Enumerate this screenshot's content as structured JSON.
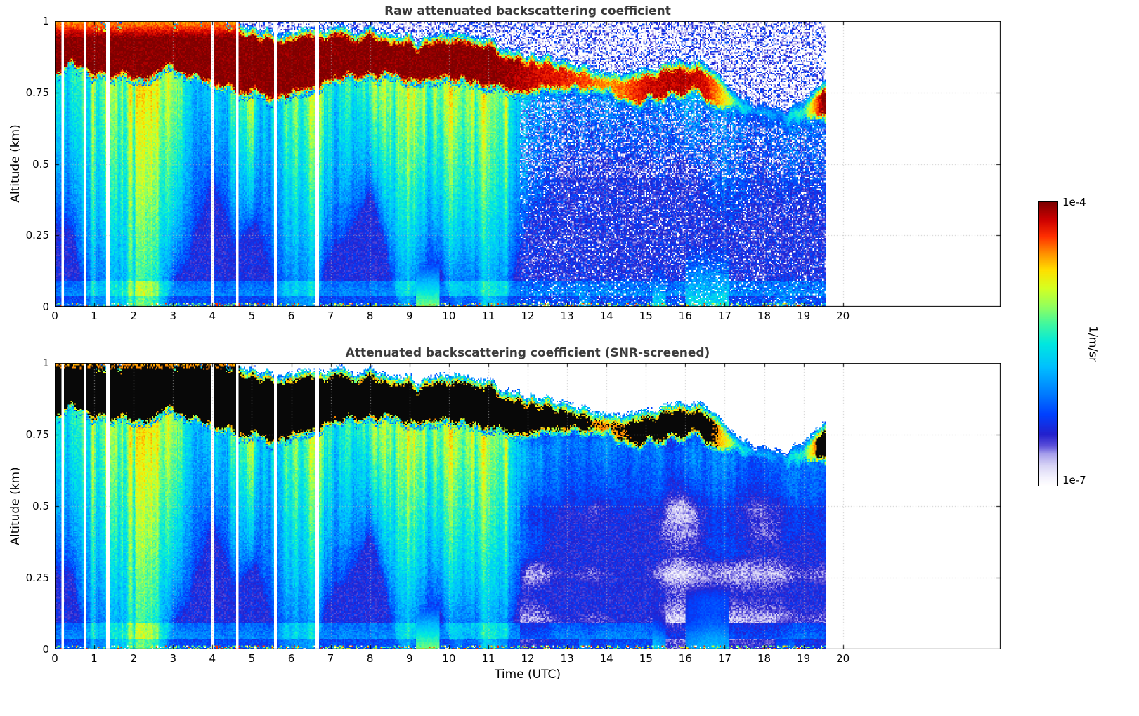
{
  "chart_data": {
    "type": "heatmap",
    "panels": [
      {
        "title": "Raw attenuated backscattering coefficient",
        "screened": false
      },
      {
        "title": "Attenuated backscattering coefficient (SNR-screened)",
        "screened": true
      }
    ],
    "x": {
      "label": "Time (UTC)",
      "lim": [
        0,
        24
      ],
      "ticks": [
        0,
        1,
        2,
        3,
        4,
        5,
        6,
        7,
        8,
        9,
        10,
        11,
        12,
        13,
        14,
        15,
        16,
        17,
        18,
        19,
        20
      ],
      "data_end": 19.58
    },
    "y": {
      "label": "Altitude (km)",
      "lim": [
        0,
        1
      ],
      "ticks": [
        0,
        0.25,
        0.5,
        0.75,
        1
      ]
    },
    "z": {
      "label": "1/m/sr",
      "scale": "log10",
      "vmin": -7,
      "vmax": -4,
      "vmin_label": "1e-7",
      "vmax_label": "1e-4"
    },
    "colormap": [
      [
        0.0,
        "#ffffff"
      ],
      [
        0.03,
        "#f3f1fd"
      ],
      [
        0.07,
        "#d9d5f6"
      ],
      [
        0.11,
        "#a9a1ec"
      ],
      [
        0.14,
        "#5b50da"
      ],
      [
        0.18,
        "#2421cd"
      ],
      [
        0.25,
        "#0041fe"
      ],
      [
        0.33,
        "#0080ff"
      ],
      [
        0.42,
        "#00c1ff"
      ],
      [
        0.5,
        "#00e8e0"
      ],
      [
        0.57,
        "#41f8a0"
      ],
      [
        0.63,
        "#90ff60"
      ],
      [
        0.7,
        "#d8ff20"
      ],
      [
        0.76,
        "#ffe000"
      ],
      [
        0.82,
        "#ff9000"
      ],
      [
        0.88,
        "#ff3000"
      ],
      [
        0.94,
        "#cc0000"
      ],
      [
        1.0,
        "#7f0000"
      ]
    ],
    "over_color_screened": "#000000",
    "missing_data_gaps_utc": [
      0.2,
      0.78,
      1.35,
      4.0,
      4.62,
      5.6,
      6.65
    ],
    "cloud": {
      "t": [
        0,
        0.5,
        1,
        1.5,
        2,
        2.5,
        3,
        3.5,
        4,
        4.5,
        5,
        5.5,
        6,
        6.5,
        7,
        7.5,
        8,
        8.5,
        9,
        9.5,
        10,
        10.5,
        11,
        11.5,
        12,
        12.5,
        13,
        13.5,
        14,
        14.5,
        15,
        15.5,
        16,
        16.5,
        17,
        17.5,
        18,
        18.5,
        19,
        19.5
      ],
      "base_km": [
        0.8,
        0.82,
        0.8,
        0.78,
        0.78,
        0.8,
        0.82,
        0.8,
        0.77,
        0.75,
        0.73,
        0.71,
        0.73,
        0.75,
        0.78,
        0.79,
        0.8,
        0.79,
        0.78,
        0.77,
        0.78,
        0.77,
        0.76,
        0.73,
        0.73,
        0.75,
        0.75,
        0.75,
        0.73,
        0.71,
        0.71,
        0.72,
        0.73,
        0.71,
        0.69,
        0.67,
        0.66,
        0.65,
        0.64,
        0.64
      ],
      "top_km": [
        1.01,
        1.01,
        1.01,
        1.01,
        1.01,
        1.01,
        1.01,
        1.01,
        1.0,
        0.99,
        0.97,
        0.95,
        0.96,
        0.97,
        0.97,
        0.96,
        0.96,
        0.95,
        0.95,
        0.94,
        0.95,
        0.94,
        0.93,
        0.9,
        0.88,
        0.87,
        0.86,
        0.84,
        0.82,
        0.81,
        0.83,
        0.85,
        0.86,
        0.84,
        0.79,
        0.72,
        0.7,
        0.69,
        0.7,
        0.78
      ],
      "intensity": [
        1,
        1,
        1,
        1,
        1,
        1,
        1,
        1,
        1,
        1,
        1,
        1,
        1,
        1,
        1,
        1,
        1,
        1,
        1,
        1,
        1,
        1,
        1,
        0.98,
        0.95,
        0.92,
        0.9,
        0.87,
        0.82,
        0.85,
        0.93,
        0.95,
        0.95,
        0.93,
        0.75,
        0.5,
        0.42,
        0.45,
        0.55,
        1.0
      ]
    },
    "virga": {
      "strength": [
        0.55,
        0.5,
        0.75,
        0.8,
        0.85,
        0.9,
        0.65,
        0.38,
        0.32,
        0.55,
        0.6,
        0.5,
        0.6,
        0.65,
        0.5,
        0.45,
        0.55,
        0.6,
        0.65,
        0.7,
        0.75,
        0.7,
        0.75,
        0.5,
        0.3,
        0.26,
        0.22,
        0.2,
        0.2,
        0.18,
        0.2,
        0.22,
        0.25,
        0.25,
        0.2,
        0.16,
        0.15,
        0.15,
        0.18,
        0.2
      ],
      "depth_km": [
        0.5,
        0.5,
        0.85,
        0.9,
        0.95,
        0.95,
        0.8,
        0.5,
        0.4,
        0.6,
        0.6,
        0.5,
        0.55,
        0.6,
        0.5,
        0.45,
        0.5,
        0.55,
        0.6,
        0.65,
        0.65,
        0.6,
        0.65,
        0.5,
        0.4,
        0.38,
        0.35,
        0.35,
        0.35,
        0.33,
        0.33,
        0.35,
        0.38,
        0.35,
        0.3,
        0.28,
        0.28,
        0.28,
        0.3,
        0.3
      ]
    },
    "surface_blobs": [
      [
        9.15,
        9.75,
        0.17,
        1.3
      ],
      [
        13.3,
        13.6,
        0.1,
        0.6
      ],
      [
        15.15,
        15.5,
        0.14,
        0.9
      ],
      [
        16.0,
        17.1,
        0.22,
        0.9
      ],
      [
        18.3,
        18.75,
        0.12,
        0.55
      ]
    ],
    "render_seed": 42
  }
}
